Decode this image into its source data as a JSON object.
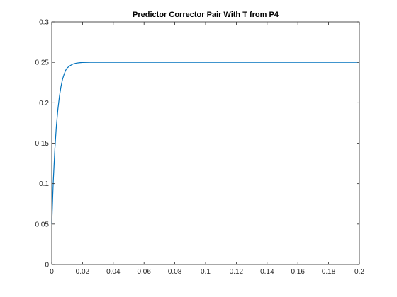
{
  "chart_data": {
    "type": "line",
    "title": "Predictor Corrector Pair With T from P4",
    "xlabel": "",
    "ylabel": "",
    "xlim": [
      0,
      0.2
    ],
    "ylim": [
      0,
      0.3
    ],
    "x_ticks": [
      0,
      0.02,
      0.04,
      0.06,
      0.08,
      0.1,
      0.12,
      0.14,
      0.16,
      0.18,
      0.2
    ],
    "x_tick_labels": [
      "0",
      "0.02",
      "0.04",
      "0.06",
      "0.08",
      "0.1",
      "0.12",
      "0.14",
      "0.16",
      "0.18",
      "0.2"
    ],
    "y_ticks": [
      0,
      0.05,
      0.1,
      0.15,
      0.2,
      0.25,
      0.3
    ],
    "y_tick_labels": [
      "0",
      "0.05",
      "0.1",
      "0.15",
      "0.2",
      "0.25",
      "0.3"
    ],
    "grid": false,
    "series": [
      {
        "color": "#0072bd",
        "x": [
          0,
          0.001,
          0.002,
          0.003,
          0.004,
          0.005,
          0.006,
          0.007,
          0.008,
          0.009,
          0.01,
          0.012,
          0.014,
          0.016,
          0.018,
          0.02,
          0.025,
          0.03,
          0.04,
          0.06,
          0.08,
          0.1,
          0.12,
          0.14,
          0.16,
          0.18,
          0.2
        ],
        "y": [
          0.05,
          0.103,
          0.142,
          0.171,
          0.192,
          0.208,
          0.22,
          0.229,
          0.235,
          0.24,
          0.243,
          0.246,
          0.248,
          0.249,
          0.2495,
          0.2498,
          0.25,
          0.25,
          0.25,
          0.25,
          0.25,
          0.25,
          0.25,
          0.25,
          0.25,
          0.25,
          0.25
        ]
      }
    ]
  }
}
